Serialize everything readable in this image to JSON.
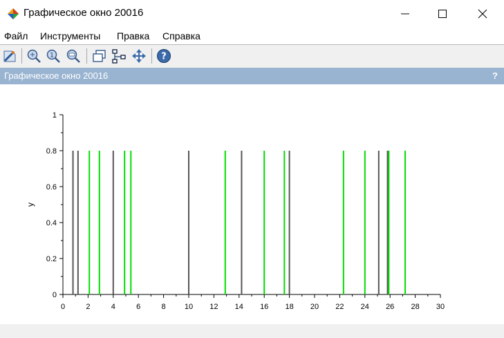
{
  "window": {
    "title": "Графическое окно 20016",
    "minimize_icon": "minimize-icon",
    "maximize_icon": "maximize-icon",
    "close_icon": "close-icon"
  },
  "menu": {
    "items": [
      "Файл",
      "Инструменты",
      "Правка",
      "Справка"
    ]
  },
  "toolbar": {
    "icons": [
      "datatip-icon",
      "zoom-icon",
      "zoom-original-icon",
      "zoom-out-icon",
      "rotate-icon",
      "datatip-manager-icon",
      "pan-icon",
      "help-icon"
    ]
  },
  "figure_header": {
    "title": "Графическое окно 20016",
    "help": "?"
  },
  "colors": {
    "header_bg": "#99b4d1",
    "toolbar_bg": "#f0f0f0",
    "dark_series": "#555555",
    "green_series": "#00dd00"
  },
  "chart_data": {
    "type": "bar",
    "xlabel": "",
    "ylabel": "y",
    "xlim": [
      0,
      30
    ],
    "ylim": [
      0,
      1
    ],
    "xticks": [
      "0",
      "2",
      "4",
      "6",
      "8",
      "10",
      "12",
      "14",
      "16",
      "18",
      "20",
      "22",
      "24",
      "26",
      "28",
      "30"
    ],
    "yticks": [
      "0",
      "0.2",
      "0.4",
      "0.6",
      "0.8",
      "1"
    ],
    "series": [
      {
        "color": "#555555",
        "x": [
          0.8,
          1.2,
          4.0,
          10.0,
          14.2,
          18.0,
          25.1,
          25.8
        ],
        "y": [
          0.8,
          0.8,
          0.8,
          0.8,
          0.8,
          0.8,
          0.8,
          0.8
        ]
      },
      {
        "color": "#00dd00",
        "x": [
          2.1,
          2.9,
          4.9,
          5.4,
          12.9,
          16.0,
          17.6,
          22.3,
          24.0,
          25.9,
          27.2
        ],
        "y": [
          0.8,
          0.8,
          0.8,
          0.8,
          0.8,
          0.8,
          0.8,
          0.8,
          0.8,
          0.8,
          0.8
        ]
      }
    ]
  }
}
